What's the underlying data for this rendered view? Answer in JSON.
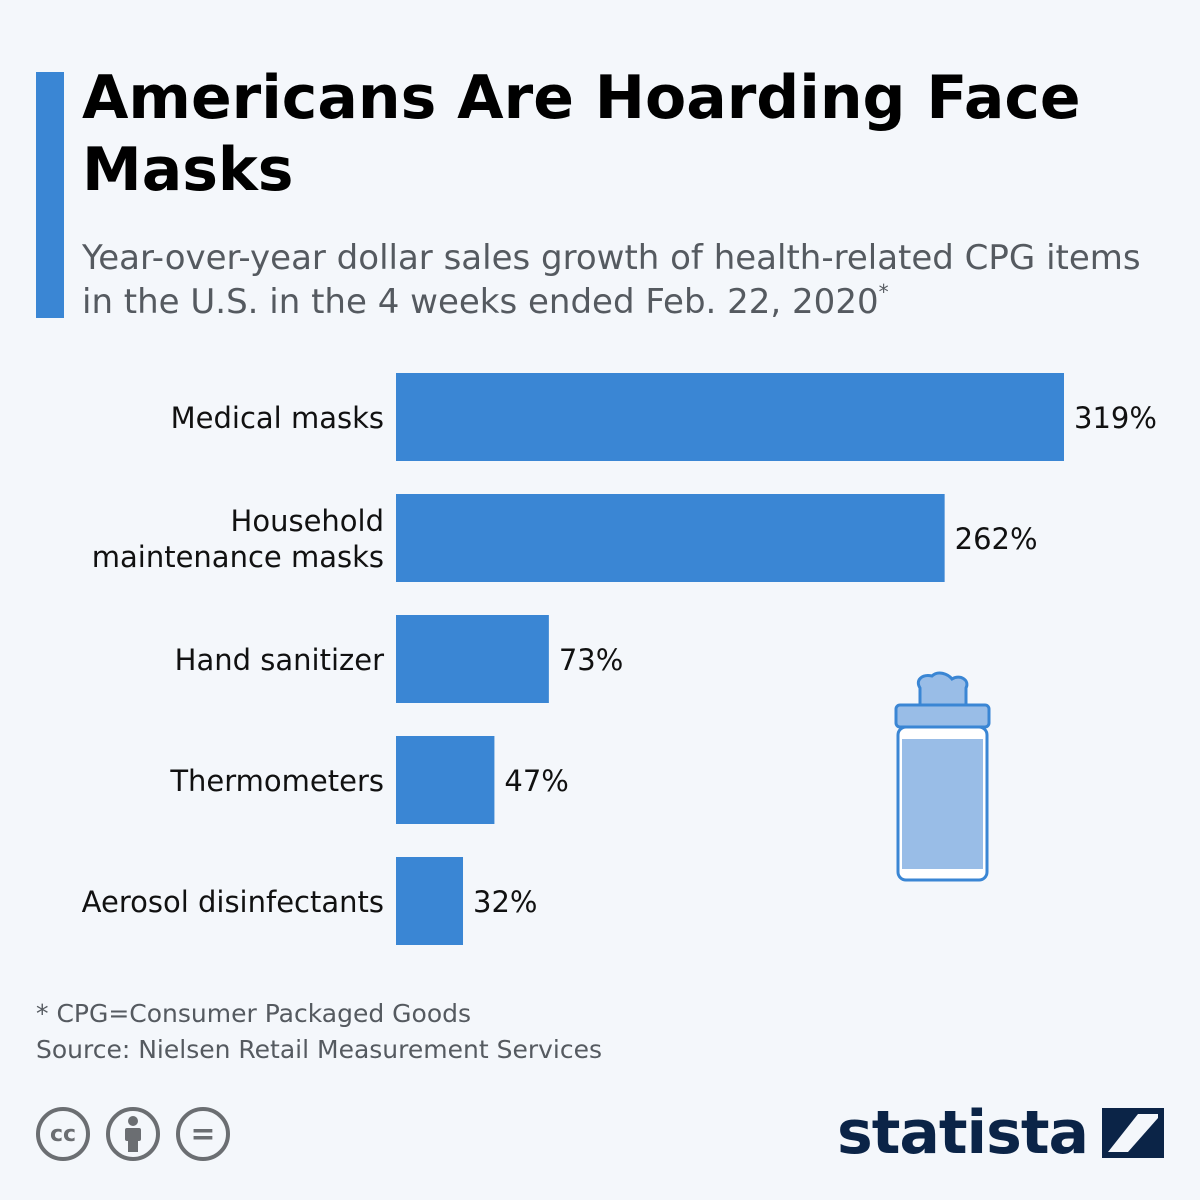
{
  "header": {
    "title": "Americans Are Hoarding Face Masks",
    "subtitle": "Year-over-year dollar sales growth of health-related CPG items in the U.S. in the 4 weeks ended Feb. 22, 2020",
    "subtitle_mark": "*"
  },
  "chart_data": {
    "type": "bar",
    "orientation": "horizontal",
    "categories": [
      [
        "Medical masks"
      ],
      [
        "Household",
        "maintenance masks"
      ],
      [
        "Hand sanitizer"
      ],
      [
        "Thermometers"
      ],
      [
        "Aerosol disinfectants"
      ]
    ],
    "values": [
      319,
      262,
      73,
      47,
      32
    ],
    "value_labels": [
      "319%",
      "262%",
      "73%",
      "47%",
      "32%"
    ],
    "xlim": [
      0,
      319
    ],
    "grid": false,
    "legend": "none",
    "bar_color": "#3a86d4"
  },
  "footer": {
    "note": "* CPG=Consumer Packaged Goods",
    "source": "Source: Nielsen Retail Measurement Services",
    "brand": "statista",
    "license_icons": [
      "cc-icon",
      "attribution-icon",
      "no-derivatives-icon"
    ],
    "cc_label": "cc",
    "nd_label": "="
  },
  "colors": {
    "accent": "#3a86d4",
    "wipes_fill": "#99bde7",
    "brand_dark": "#0b2447"
  }
}
